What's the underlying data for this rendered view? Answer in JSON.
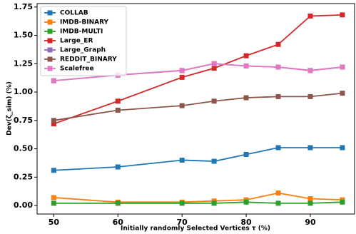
{
  "chart_data": {
    "type": "line",
    "xlabel": "Initially randomly Selected Vertices τ (%)",
    "ylabel": "Dev(ζ_sim) (%)",
    "x": [
      50,
      60,
      70,
      75,
      80,
      85,
      90,
      95
    ],
    "series": [
      {
        "name": "COLLAB",
        "color": "#1f77b4",
        "values": [
          0.31,
          0.34,
          0.4,
          0.39,
          0.45,
          0.51,
          0.51,
          0.51
        ]
      },
      {
        "name": "IMDB-BINARY",
        "color": "#ff7f0e",
        "values": [
          0.07,
          0.03,
          0.03,
          0.04,
          0.05,
          0.11,
          0.06,
          0.05
        ]
      },
      {
        "name": "IMDB-MULTI",
        "color": "#2ca02c",
        "values": [
          0.02,
          0.02,
          0.02,
          0.02,
          0.03,
          0.02,
          0.02,
          0.03
        ]
      },
      {
        "name": "Large_ER",
        "color": "#d62728",
        "values": [
          0.72,
          0.92,
          1.13,
          1.21,
          1.32,
          1.42,
          1.67,
          1.68
        ]
      },
      {
        "name": "Large_Graph",
        "color": "#9467bd",
        "values": [
          1.1,
          1.15,
          1.19,
          1.25,
          1.23,
          1.22,
          1.19,
          1.22
        ]
      },
      {
        "name": "REDDIT_BINARY",
        "color": "#8c564b",
        "values": [
          0.75,
          0.84,
          0.88,
          0.92,
          0.95,
          0.96,
          0.96,
          0.99
        ]
      },
      {
        "name": "Scalefree",
        "color": "#e377c2",
        "values": [
          1.1,
          1.15,
          1.19,
          1.25,
          1.23,
          1.22,
          1.19,
          1.22
        ]
      }
    ],
    "xlim": [
      47.4,
      96.9
    ],
    "ylim": [
      -0.075,
      1.78
    ],
    "xticks": [
      50,
      60,
      70,
      80,
      90
    ],
    "yticks": [
      {
        "value": 0,
        "label": "0.00"
      },
      {
        "value": 0.25,
        "label": "0.25"
      },
      {
        "value": 0.5,
        "label": "0.50"
      },
      {
        "value": 0.75,
        "label": "0.75"
      },
      {
        "value": 1.0,
        "label": "1.00"
      },
      {
        "value": 1.25,
        "label": "1.25"
      },
      {
        "value": 1.5,
        "label": "1.50"
      },
      {
        "value": 1.75,
        "label": "1.75"
      }
    ],
    "legend": "upper left",
    "grid": false
  }
}
